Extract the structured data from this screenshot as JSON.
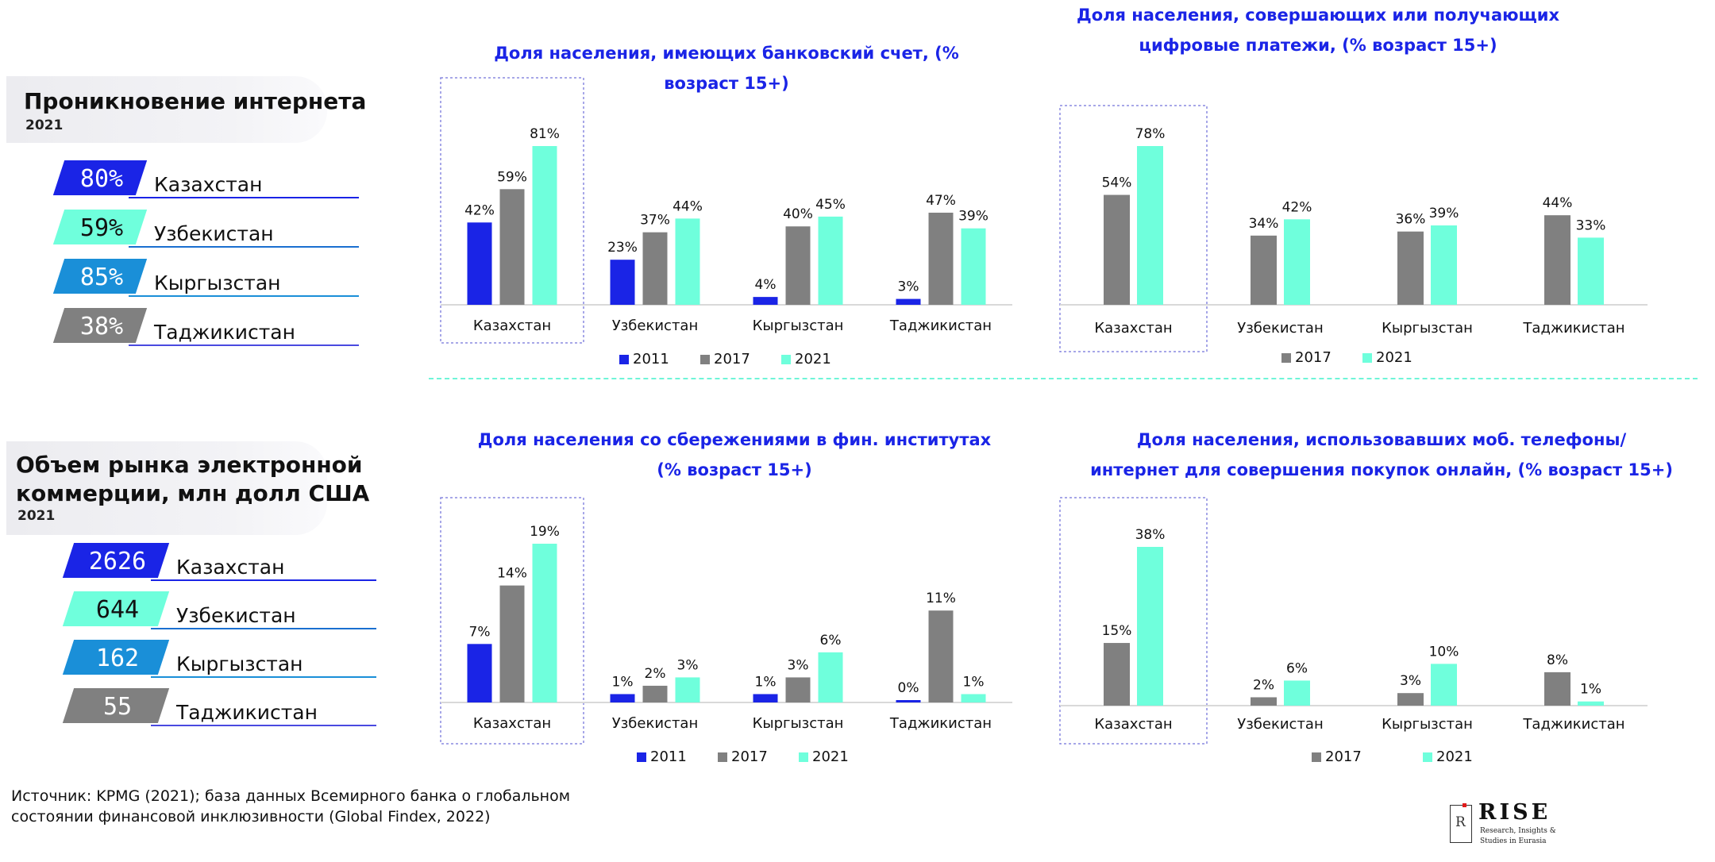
{
  "colors": {
    "c2011": "#1a24e6",
    "c2017": "#808080",
    "c2021": "#6fffdc",
    "title_blue": "#1a24e6",
    "highlight_border": "#8a8ae0"
  },
  "panels": {
    "internet": {
      "title": "Проникновение интернета",
      "year": "2021",
      "items": [
        {
          "value": "80%",
          "label": "Казахстан",
          "color": "#1a24e6",
          "text_color": "#ffffff",
          "line_color": "#1a24e6"
        },
        {
          "value": "59%",
          "label": "Узбекистан",
          "color": "#6fffdc",
          "text_color": "#111111",
          "line_color": "#1a6fd0"
        },
        {
          "value": "85%",
          "label": "Кыргызстан",
          "color": "#1a8fd8",
          "text_color": "#ffffff",
          "line_color": "#1a8fd8"
        },
        {
          "value": "38%",
          "label": "Таджикистан",
          "color": "#808080",
          "text_color": "#ffffff",
          "line_color": "#4a4ae0"
        }
      ]
    },
    "ecommerce": {
      "title_line1": "Объем рынка электронной",
      "title_line2": "коммерции, млн долл США",
      "year": "2021",
      "items": [
        {
          "value": "2626",
          "label": "Казахстан",
          "color": "#1a24e6",
          "text_color": "#ffffff",
          "line_color": "#1a24e6"
        },
        {
          "value": "644",
          "label": "Узбекистан",
          "color": "#6fffdc",
          "text_color": "#111111",
          "line_color": "#1a6fd0"
        },
        {
          "value": "162",
          "label": "Кыргызстан",
          "color": "#1a8fd8",
          "text_color": "#ffffff",
          "line_color": "#1a8fd8"
        },
        {
          "value": "55",
          "label": "Таджикистан",
          "color": "#808080",
          "text_color": "#ffffff",
          "line_color": "#4a4ae0"
        }
      ]
    }
  },
  "chart_data": [
    {
      "type": "bar",
      "title_line1": "Доля населения, имеющих банковский счет, (%",
      "title_line2": "возраст 15+)",
      "categories": [
        "Казахстан",
        "Узбекистан",
        "Кыргызстан",
        "Таджикистан"
      ],
      "series": [
        {
          "name": "2011",
          "values": [
            42,
            23,
            4,
            3
          ],
          "labels": [
            "42%",
            "23%",
            "4%",
            "3%"
          ]
        },
        {
          "name": "2017",
          "values": [
            59,
            37,
            40,
            47
          ],
          "labels": [
            "59%",
            "37%",
            "40%",
            "47%"
          ]
        },
        {
          "name": "2021",
          "values": [
            81,
            44,
            45,
            39
          ],
          "labels": [
            "81%",
            "44%",
            "45%",
            "39%"
          ]
        }
      ],
      "ylim": [
        0,
        81
      ],
      "highlight": "Казахстан",
      "legend": "bottom"
    },
    {
      "type": "bar",
      "title_line1": "Доля населения, совершающих или получающих",
      "title_line2": "цифровые платежи, (% возраст 15+)",
      "categories": [
        "Казахстан",
        "Узбекистан",
        "Кыргызстан",
        "Таджикистан"
      ],
      "series": [
        {
          "name": "2017",
          "values": [
            54,
            34,
            36,
            44
          ],
          "labels": [
            "54%",
            "34%",
            "36%",
            "44%"
          ]
        },
        {
          "name": "2021",
          "values": [
            78,
            42,
            39,
            33
          ],
          "labels": [
            "78%",
            "42%",
            "39%",
            "33%"
          ]
        }
      ],
      "ylim": [
        0,
        78
      ],
      "highlight": "Казахстан",
      "legend": "bottom"
    },
    {
      "type": "bar",
      "title_line1": "Доля населения со сбережениями в фин. институтах",
      "title_line2": "(% возраст 15+)",
      "categories": [
        "Казахстан",
        "Узбекистан",
        "Кыргызстан",
        "Таджикистан"
      ],
      "series": [
        {
          "name": "2011",
          "values": [
            7,
            1,
            1,
            0
          ],
          "labels": [
            "7%",
            "1%",
            "1%",
            "0%"
          ]
        },
        {
          "name": "2017",
          "values": [
            14,
            2,
            3,
            11
          ],
          "labels": [
            "14%",
            "2%",
            "3%",
            "11%"
          ]
        },
        {
          "name": "2021",
          "values": [
            19,
            3,
            6,
            1
          ],
          "labels": [
            "19%",
            "3%",
            "6%",
            "1%"
          ]
        }
      ],
      "ylim": [
        0,
        19
      ],
      "highlight": "Казахстан",
      "legend": "bottom"
    },
    {
      "type": "bar",
      "title_line1": "Доля населения, использовавших моб. телефоны/",
      "title_line2": "интернет для совершения покупок онлайн, (% возраст 15+)",
      "categories": [
        "Казахстан",
        "Узбекистан",
        "Кыргызстан",
        "Таджикистан"
      ],
      "series": [
        {
          "name": "2017",
          "values": [
            15,
            2,
            3,
            8
          ],
          "labels": [
            "15%",
            "2%",
            "3%",
            "8%"
          ]
        },
        {
          "name": "2021",
          "values": [
            38,
            6,
            10,
            1
          ],
          "labels": [
            "38%",
            "6%",
            "10%",
            "1%"
          ]
        }
      ],
      "ylim": [
        0,
        38
      ],
      "highlight": "Казахстан",
      "legend": "bottom"
    }
  ],
  "source": {
    "line1": "Источник: KPMG (2021); база данных Всемирного банка о глобальном",
    "line2": "состоянии финансовой инклюзивности (Global Findex, 2022)"
  },
  "logo": {
    "mark": "R",
    "name": "RISE",
    "tagline1": "Research, Insights &",
    "tagline2": "Studies in Eurasia"
  }
}
